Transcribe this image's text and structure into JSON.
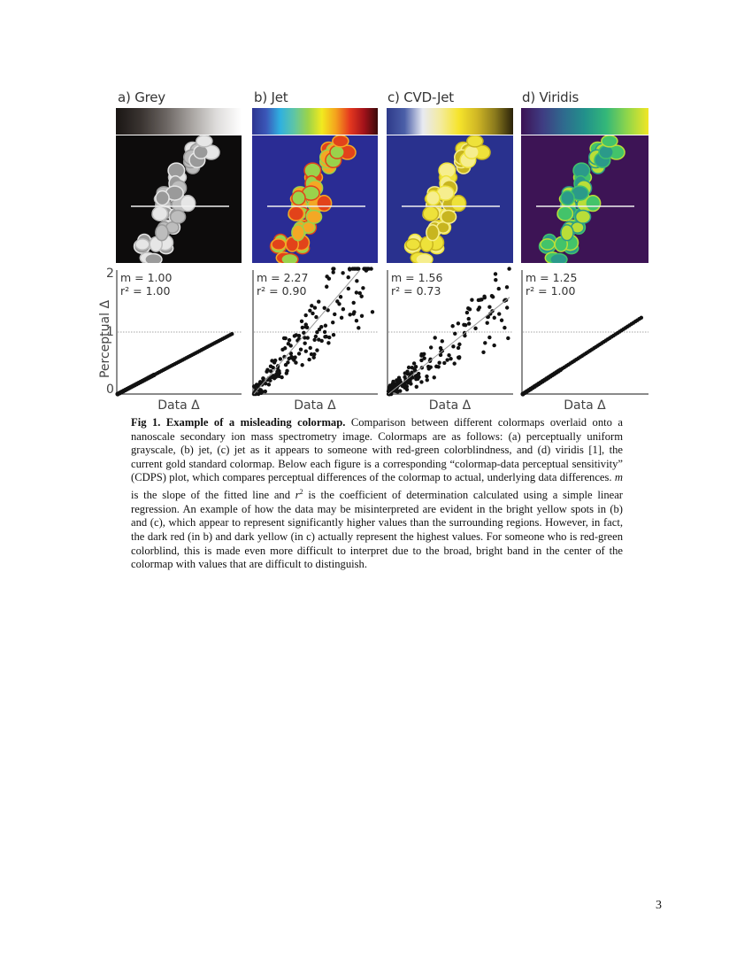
{
  "figure": {
    "panels": [
      {
        "id": "a",
        "title": "a) Grey",
        "colormap": [
          "#1a1614",
          "#3a3431",
          "#6b6562",
          "#a7a3a0",
          "#dedcdb",
          "#ffffff"
        ],
        "background": "#0d0c0c",
        "cell_colors": [
          "#e6e6e6",
          "#bdbdbd",
          "#9a9a9a"
        ],
        "slope_label": "m = 1.00",
        "r2_label": "r² = 1.00",
        "xlabel": "Data Δ"
      },
      {
        "id": "b",
        "title": "b) Jet",
        "colormap": [
          "#2d3591",
          "#3b57b8",
          "#2fb0e0",
          "#5ec5a6",
          "#9bd34a",
          "#f2ea1f",
          "#f4a21d",
          "#e5381f",
          "#a3121a",
          "#3a0a0a"
        ],
        "background": "#2a2c94",
        "cell_colors": [
          "#e2431a",
          "#f3a825",
          "#9ad24b"
        ],
        "slope_label": "m = 2.27",
        "r2_label": "r² = 0.90",
        "xlabel": "Data Δ"
      },
      {
        "id": "c",
        "title": "c) CVD-Jet",
        "colormap": [
          "#2e3a8a",
          "#4b5fa8",
          "#e8eaf2",
          "#f4eb9c",
          "#f6e42b",
          "#d0b725",
          "#8b7a1d",
          "#2a220a"
        ],
        "background": "#29318e",
        "cell_colors": [
          "#eee23a",
          "#c8b51f",
          "#f6ee8e"
        ],
        "slope_label": "m = 1.56",
        "r2_label": "r² = 0.73",
        "xlabel": "Data Δ"
      },
      {
        "id": "d",
        "title": "d) Viridis",
        "colormap": [
          "#3c1254",
          "#3f3c82",
          "#2f6a8e",
          "#22918b",
          "#33b779",
          "#8fd64a",
          "#f1e625"
        ],
        "background": "#3d1455",
        "cell_colors": [
          "#43c36a",
          "#b9de38",
          "#2b9a8a"
        ],
        "slope_label": "m = 1.25",
        "r2_label": "r² = 1.00",
        "xlabel": "Data Δ"
      }
    ],
    "y_axis": {
      "label": "Perceptual Δ",
      "ticks": [
        "0",
        "1",
        "2"
      ]
    }
  },
  "chart_data": [
    {
      "type": "scatter",
      "title": "a) Grey",
      "xlabel": "Data Δ",
      "ylabel": "Perceptual Δ",
      "ylim": [
        0,
        2
      ],
      "yticks": [
        0,
        1,
        2
      ],
      "reference_line_y": 1,
      "slope": 1.0,
      "r2": 1.0,
      "description": "points on tight straight line from (0,0) to ~(1.0, 0.97)"
    },
    {
      "type": "scatter",
      "title": "b) Jet",
      "xlabel": "Data Δ",
      "ylabel": "Perceptual Δ",
      "ylim": [
        0,
        2
      ],
      "yticks": [
        0,
        1,
        2
      ],
      "reference_line_y": 1,
      "slope": 2.27,
      "r2": 0.9,
      "description": "widely scattered points with steep fit line exceeding y=2"
    },
    {
      "type": "scatter",
      "title": "c) CVD-Jet",
      "xlabel": "Data Δ",
      "ylabel": "Perceptual Δ",
      "ylim": [
        0,
        2
      ],
      "yticks": [
        0,
        1,
        2
      ],
      "reference_line_y": 1,
      "slope": 1.56,
      "r2": 0.73,
      "description": "widely scattered points, fit line reaching ~1.5"
    },
    {
      "type": "scatter",
      "title": "d) Viridis",
      "xlabel": "Data Δ",
      "ylabel": "Perceptual Δ",
      "ylim": [
        0,
        2
      ],
      "yticks": [
        0,
        1,
        2
      ],
      "reference_line_y": 1,
      "slope": 1.25,
      "r2": 1.0,
      "description": "points on tight straight line from (0,0) to ~(1.0, 1.2)"
    }
  ],
  "caption": {
    "label": "Fig 1. Example of a misleading colormap.",
    "text_1": " Comparison between different colormaps overlaid onto a nanoscale secondary ion mass spectrometry image. Colormaps are as follows: (a) perceptually uniform grayscale, (b) jet, (c) jet as it appears to someone with red-green colorblindness, and (d) viridis [1], the current gold standard colormap. Below each figure is a corresponding “colormap-data perceptual sensitivity” (CDPS) plot, which compares perceptual differences of the colormap to actual, underlying data differences. ",
    "m_symbol": "m",
    "text_2": " is the slope of the fitted line and ",
    "r_symbol": "r",
    "r_sup": "2",
    "text_3": " is the coefficient of determination calculated using a simple linear regression. An example of how the data may be misinterpreted are evident in the bright yellow spots in (b) and (c), which appear to represent significantly higher values than the surrounding regions. However, in fact, the dark red (in b) and dark yellow (in c) actually represent the highest values. For someone who is red-green colorblind, this is made even more difficult to interpret due to the broad, bright band in the center of the colormap with values that are difficult to distinguish."
  },
  "page_number": "3"
}
